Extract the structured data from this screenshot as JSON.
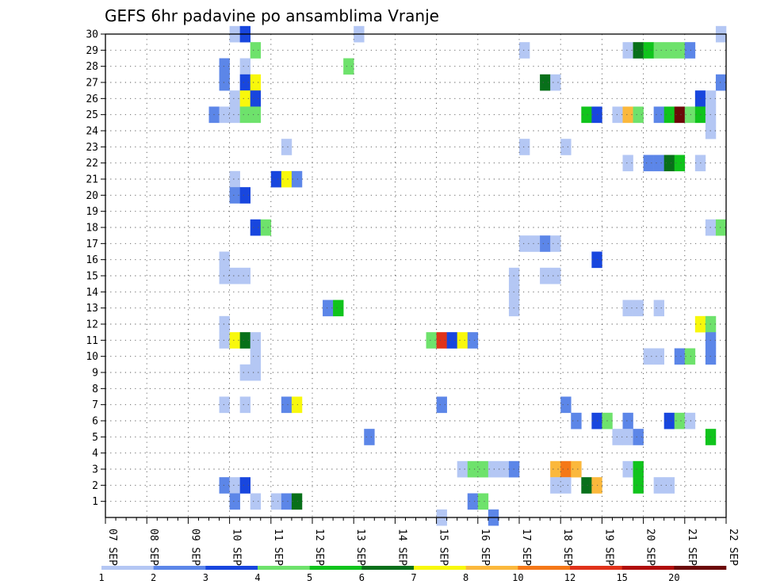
{
  "chart_data": {
    "type": "heatmap",
    "title": "GEFS 6hr padavine po ansamblima Vranje",
    "xlabel": "",
    "ylabel": "",
    "x_ticks": [
      "07 SEP",
      "08 SEP",
      "09 SEP",
      "10 SEP",
      "11 SEP",
      "12 SEP",
      "13 SEP",
      "14 SEP",
      "15 SEP",
      "16 SEP",
      "17 SEP",
      "18 SEP",
      "19 SEP",
      "20 SEP",
      "21 SEP",
      "22 SEP"
    ],
    "x_range": [
      "07 SEP 00Z",
      "22 SEP 00Z"
    ],
    "x_step_hours": 6,
    "y_ticks": [
      1,
      2,
      3,
      4,
      5,
      6,
      7,
      8,
      9,
      10,
      11,
      12,
      13,
      14,
      15,
      16,
      17,
      18,
      19,
      20,
      21,
      22,
      23,
      24,
      25,
      26,
      27,
      28,
      29,
      30
    ],
    "y_range": [
      0,
      30
    ],
    "grid": true,
    "colorbar": {
      "placement": "bottom",
      "labels": [
        "1",
        "2",
        "3",
        "4",
        "5",
        "6",
        "7",
        "8",
        "10",
        "12",
        "15",
        "20"
      ],
      "colors": [
        "#b4c7f4",
        "#5c86e8",
        "#1846de",
        "#6ee26c",
        "#10c41c",
        "#08701a",
        "#f8f80c",
        "#fbb83c",
        "#f57818",
        "#e0321a",
        "#b00e0c",
        "#6c0808"
      ]
    },
    "cells": [
      [
        30,
        12,
        1
      ],
      [
        30,
        13,
        3
      ],
      [
        30,
        24,
        1
      ],
      [
        30,
        59,
        1
      ],
      [
        29,
        14,
        4
      ],
      [
        29,
        40,
        1
      ],
      [
        29,
        50,
        1
      ],
      [
        29,
        51,
        6
      ],
      [
        29,
        52,
        5
      ],
      [
        29,
        53,
        4
      ],
      [
        29,
        54,
        4
      ],
      [
        29,
        55,
        4
      ],
      [
        29,
        56,
        2
      ],
      [
        28,
        11,
        2
      ],
      [
        28,
        13,
        1
      ],
      [
        28,
        23,
        4
      ],
      [
        27,
        11,
        2
      ],
      [
        27,
        13,
        3
      ],
      [
        27,
        14,
        7
      ],
      [
        27,
        42,
        6
      ],
      [
        27,
        43,
        1
      ],
      [
        27,
        59,
        2
      ],
      [
        26,
        12,
        1
      ],
      [
        26,
        13,
        7
      ],
      [
        26,
        14,
        3
      ],
      [
        26,
        57,
        3
      ],
      [
        26,
        58,
        1
      ],
      [
        25,
        10,
        2
      ],
      [
        25,
        11,
        1
      ],
      [
        25,
        12,
        1
      ],
      [
        25,
        13,
        4
      ],
      [
        25,
        14,
        4
      ],
      [
        25,
        46,
        5
      ],
      [
        25,
        47,
        3
      ],
      [
        25,
        49,
        1
      ],
      [
        25,
        50,
        8
      ],
      [
        25,
        51,
        4
      ],
      [
        25,
        53,
        2
      ],
      [
        25,
        54,
        5
      ],
      [
        25,
        55,
        12
      ],
      [
        25,
        56,
        4
      ],
      [
        25,
        57,
        5
      ],
      [
        25,
        58,
        1
      ],
      [
        24,
        58,
        1
      ],
      [
        23,
        17,
        1
      ],
      [
        23,
        40,
        1
      ],
      [
        23,
        44,
        1
      ],
      [
        22,
        50,
        1
      ],
      [
        22,
        52,
        2
      ],
      [
        22,
        53,
        2
      ],
      [
        22,
        54,
        6
      ],
      [
        22,
        55,
        5
      ],
      [
        22,
        57,
        1
      ],
      [
        21,
        12,
        1
      ],
      [
        21,
        16,
        3
      ],
      [
        21,
        17,
        7
      ],
      [
        21,
        18,
        2
      ],
      [
        20,
        12,
        2
      ],
      [
        20,
        13,
        3
      ],
      [
        18,
        14,
        3
      ],
      [
        18,
        15,
        4
      ],
      [
        18,
        58,
        1
      ],
      [
        18,
        59,
        4
      ],
      [
        17,
        40,
        1
      ],
      [
        17,
        41,
        1
      ],
      [
        17,
        42,
        2
      ],
      [
        17,
        43,
        1
      ],
      [
        16,
        11,
        1
      ],
      [
        16,
        47,
        3
      ],
      [
        15,
        11,
        1
      ],
      [
        15,
        12,
        1
      ],
      [
        15,
        13,
        1
      ],
      [
        15,
        39,
        1
      ],
      [
        15,
        42,
        1
      ],
      [
        15,
        43,
        1
      ],
      [
        14,
        39,
        1
      ],
      [
        13,
        21,
        2
      ],
      [
        13,
        22,
        5
      ],
      [
        13,
        39,
        1
      ],
      [
        13,
        50,
        1
      ],
      [
        13,
        51,
        1
      ],
      [
        13,
        53,
        1
      ],
      [
        12,
        11,
        1
      ],
      [
        12,
        57,
        7
      ],
      [
        12,
        58,
        4
      ],
      [
        11,
        11,
        1
      ],
      [
        11,
        12,
        7
      ],
      [
        11,
        13,
        6
      ],
      [
        11,
        14,
        1
      ],
      [
        11,
        31,
        4
      ],
      [
        11,
        32,
        10
      ],
      [
        11,
        33,
        3
      ],
      [
        11,
        34,
        7
      ],
      [
        11,
        35,
        2
      ],
      [
        11,
        58,
        2
      ],
      [
        10,
        14,
        1
      ],
      [
        10,
        52,
        1
      ],
      [
        10,
        53,
        1
      ],
      [
        10,
        55,
        2
      ],
      [
        10,
        56,
        4
      ],
      [
        10,
        58,
        2
      ],
      [
        9,
        13,
        1
      ],
      [
        9,
        14,
        1
      ],
      [
        7,
        11,
        1
      ],
      [
        7,
        13,
        1
      ],
      [
        7,
        17,
        2
      ],
      [
        7,
        18,
        7
      ],
      [
        7,
        32,
        2
      ],
      [
        7,
        44,
        2
      ],
      [
        6,
        45,
        2
      ],
      [
        6,
        47,
        3
      ],
      [
        6,
        48,
        4
      ],
      [
        6,
        50,
        2
      ],
      [
        6,
        54,
        3
      ],
      [
        6,
        55,
        4
      ],
      [
        6,
        56,
        1
      ],
      [
        5,
        25,
        2
      ],
      [
        5,
        49,
        1
      ],
      [
        5,
        50,
        1
      ],
      [
        5,
        51,
        2
      ],
      [
        5,
        58,
        5
      ],
      [
        3,
        34,
        1
      ],
      [
        3,
        35,
        4
      ],
      [
        3,
        36,
        4
      ],
      [
        3,
        37,
        1
      ],
      [
        3,
        38,
        1
      ],
      [
        3,
        39,
        2
      ],
      [
        3,
        43,
        8
      ],
      [
        3,
        44,
        9
      ],
      [
        3,
        45,
        8
      ],
      [
        3,
        50,
        1
      ],
      [
        3,
        51,
        5
      ],
      [
        2,
        11,
        2
      ],
      [
        2,
        12,
        1
      ],
      [
        2,
        13,
        3
      ],
      [
        2,
        43,
        1
      ],
      [
        2,
        44,
        1
      ],
      [
        2,
        46,
        6
      ],
      [
        2,
        47,
        8
      ],
      [
        2,
        51,
        5
      ],
      [
        2,
        53,
        1
      ],
      [
        2,
        54,
        1
      ],
      [
        1,
        12,
        2
      ],
      [
        1,
        14,
        1
      ],
      [
        1,
        16,
        1
      ],
      [
        1,
        17,
        2
      ],
      [
        1,
        18,
        6
      ],
      [
        1,
        35,
        2
      ],
      [
        1,
        36,
        4
      ],
      [
        0,
        32,
        1
      ],
      [
        0,
        37,
        2
      ]
    ]
  }
}
